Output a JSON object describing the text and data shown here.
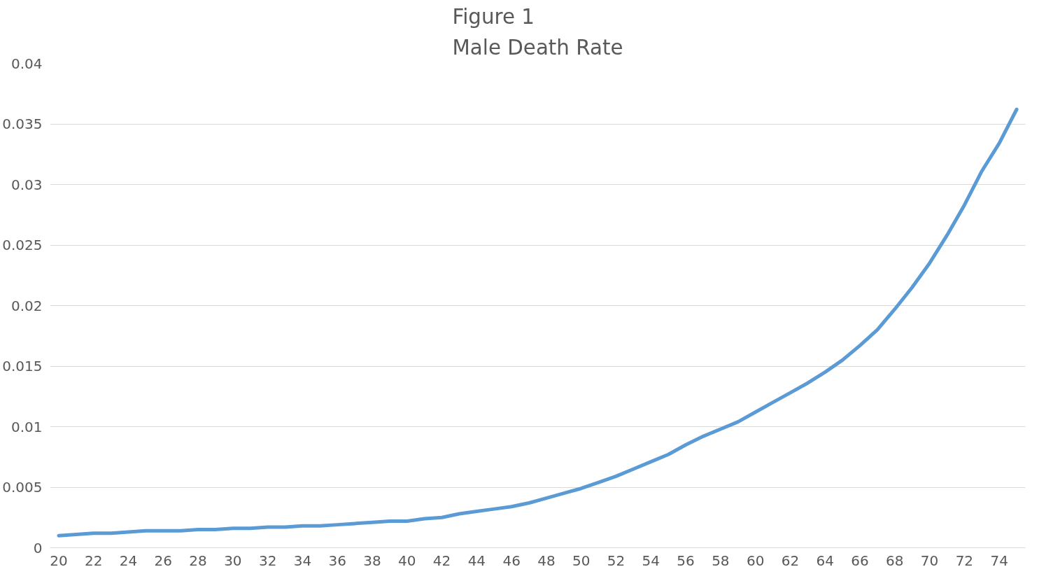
{
  "chart_data": {
    "type": "line",
    "title": "Figure 1\nMale Death Rate",
    "categories": [
      "20",
      null,
      "22",
      null,
      "24",
      null,
      "26",
      null,
      "28",
      null,
      "30",
      null,
      "32",
      null,
      "34",
      null,
      "36",
      null,
      "38",
      null,
      "40",
      null,
      "42",
      null,
      "44",
      null,
      "46",
      null,
      "48",
      null,
      "50",
      null,
      "52",
      null,
      "54",
      null,
      "56",
      null,
      "58",
      null,
      "60",
      null,
      "62",
      null,
      "64",
      null,
      "66",
      null,
      "68",
      null,
      "70",
      null,
      "72",
      null,
      "74",
      null
    ],
    "series": [
      {
        "color": "#5b9bd5",
        "values": [
          0.001,
          0.0011,
          0.0012,
          0.0012,
          0.0013,
          0.0014,
          0.0014,
          0.0014,
          0.0015,
          0.0015,
          0.0016,
          0.0016,
          0.0017,
          0.0017,
          0.0018,
          0.0018,
          0.0019,
          0.002,
          0.0021,
          0.0022,
          0.0022,
          0.0024,
          0.0025,
          0.0028,
          0.003,
          0.0032,
          0.0034,
          0.0037,
          0.0041,
          0.0045,
          0.0049,
          0.0054,
          0.0059,
          0.0065,
          0.0071,
          0.0077,
          0.0085,
          0.0092,
          0.0098,
          0.0104,
          0.0112,
          0.012,
          0.0128,
          0.0136,
          0.0145,
          0.0155,
          0.0167,
          0.018,
          0.0197,
          0.0215,
          0.0235,
          0.0258,
          0.0283,
          0.0311,
          0.0334,
          0.0362
        ]
      }
    ],
    "ylim": [
      0,
      0.04
    ],
    "yticks": [
      0,
      0.005,
      0.01,
      0.015,
      0.02,
      0.025,
      0.03,
      0.035,
      0.04
    ],
    "grid": "y",
    "legend": false,
    "marker": "none",
    "line_style": "solid"
  }
}
